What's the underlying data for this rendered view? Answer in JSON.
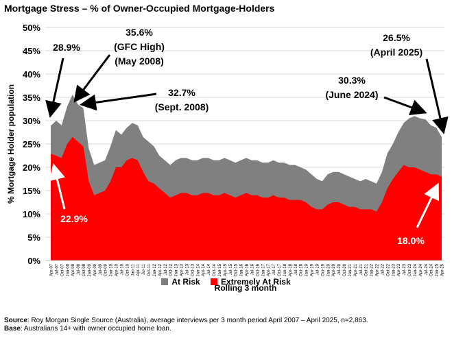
{
  "title": "Mortgage Stress – % of Owner-Occupied Mortgage-Holders",
  "footer": {
    "source_label": "Source",
    "source_text": ": Roy Morgan Single Source (Australia), average interviews per 3 month period April 2007 – April 2025, n=2,863.",
    "base_label": "Base",
    "base_text": ": Australians 14+ with owner occupied home loan."
  },
  "colors": {
    "at_risk": "#808080",
    "extreme": "#ff0000",
    "grid": "#d9d9d9"
  },
  "chart_data": {
    "type": "area",
    "xlabel": "Rolling 3 month",
    "ylabel": "% Mortgage Holder population",
    "ylim": [
      0,
      50
    ],
    "yticks": [
      "0%",
      "5%",
      "10%",
      "15%",
      "20%",
      "25%",
      "30%",
      "35%",
      "40%",
      "45%",
      "50%"
    ],
    "x": [
      "Apr-07",
      "Jul-07",
      "Oct-07",
      "Jan-08",
      "Apr-08",
      "Jul-08",
      "Oct-08",
      "Jan-09",
      "Apr-09",
      "Jul-09",
      "Oct-09",
      "Jan-10",
      "Apr-10",
      "Jul-10",
      "Oct-10",
      "Jan-11",
      "Apr-11",
      "Jul-11",
      "Oct-11",
      "Jan-12",
      "Apr-12",
      "Jul-12",
      "Oct-12",
      "Jan-13",
      "Apr-13",
      "Jul-13",
      "Oct-13",
      "Jan-14",
      "Apr-14",
      "Jul-14",
      "Oct-14",
      "Jan-15",
      "Apr-15",
      "Jul-15",
      "Oct-15",
      "Jan-16",
      "Apr-16",
      "Jul-16",
      "Oct-16",
      "Jan-17",
      "Apr-17",
      "Jul-17",
      "Oct-17",
      "Jan-18",
      "Apr-18",
      "Jul-18",
      "Oct-18",
      "Jan-19",
      "Apr-19",
      "Jul-19",
      "Oct-19",
      "Jan-20",
      "Apr-20",
      "Jul-20",
      "Oct-20",
      "Jan-21",
      "Apr-21",
      "Jul-21",
      "Oct-21",
      "Jan-22",
      "Apr-22",
      "Jul-22",
      "Oct-22",
      "Jan-23",
      "Apr-23",
      "Jul-23",
      "Oct-23",
      "Jan-24",
      "Apr-24",
      "Jul-24",
      "Oct-24",
      "Jan-25",
      "Apr-25"
    ],
    "series": [
      {
        "name": "At Risk",
        "color": "#808080",
        "values": [
          28.9,
          30.0,
          29.0,
          33.0,
          35.6,
          33.5,
          32.7,
          24.0,
          20.5,
          21.0,
          21.5,
          24.5,
          28.0,
          27.0,
          28.5,
          29.5,
          29.0,
          26.5,
          25.5,
          24.5,
          22.5,
          21.5,
          20.5,
          21.5,
          22.0,
          22.0,
          21.5,
          21.5,
          22.0,
          22.0,
          21.5,
          21.5,
          22.0,
          21.5,
          21.0,
          21.5,
          22.0,
          21.5,
          21.5,
          21.0,
          21.0,
          21.5,
          21.0,
          21.0,
          20.5,
          20.5,
          20.0,
          19.5,
          18.5,
          17.5,
          17.0,
          18.5,
          19.0,
          19.0,
          18.5,
          18.0,
          17.5,
          17.0,
          17.5,
          17.0,
          16.5,
          19.0,
          23.0,
          25.0,
          27.5,
          29.5,
          30.5,
          31.0,
          30.5,
          30.3,
          29.0,
          28.5,
          26.5
        ]
      },
      {
        "name": "Extremely At Risk",
        "color": "#ff0000",
        "values": [
          22.9,
          22.5,
          22.0,
          25.0,
          26.5,
          25.5,
          24.5,
          17.0,
          14.0,
          14.5,
          15.0,
          17.0,
          20.0,
          20.0,
          21.5,
          22.0,
          21.5,
          19.0,
          17.0,
          16.5,
          15.5,
          14.5,
          13.5,
          14.0,
          14.5,
          14.5,
          14.0,
          14.0,
          14.5,
          14.5,
          14.0,
          14.0,
          14.5,
          14.0,
          13.5,
          14.0,
          14.5,
          14.0,
          14.0,
          13.5,
          13.5,
          14.0,
          13.5,
          13.5,
          13.0,
          13.0,
          13.0,
          12.5,
          11.5,
          11.0,
          11.0,
          12.0,
          12.5,
          12.5,
          12.0,
          11.5,
          11.5,
          11.0,
          11.0,
          11.0,
          10.5,
          12.5,
          15.5,
          17.5,
          19.0,
          20.5,
          20.0,
          20.0,
          19.5,
          19.0,
          18.5,
          18.5,
          18.0
        ]
      }
    ],
    "annotations": [
      {
        "lines": [
          "28.9%"
        ],
        "color": "#000000"
      },
      {
        "lines": [
          "35.6%",
          "(GFC High)",
          "(May 2008)"
        ],
        "color": "#000000"
      },
      {
        "lines": [
          "32.7%",
          "(Sept. 2008)"
        ],
        "color": "#000000"
      },
      {
        "lines": [
          "22.9%"
        ],
        "color": "#ffffff"
      },
      {
        "lines": [
          "30.3%",
          "(June 2024)"
        ],
        "color": "#000000"
      },
      {
        "lines": [
          "26.5%",
          "(April 2025)"
        ],
        "color": "#000000"
      },
      {
        "lines": [
          "18.0%"
        ],
        "color": "#ffffff"
      }
    ],
    "legend": "bottom",
    "grid": true
  }
}
